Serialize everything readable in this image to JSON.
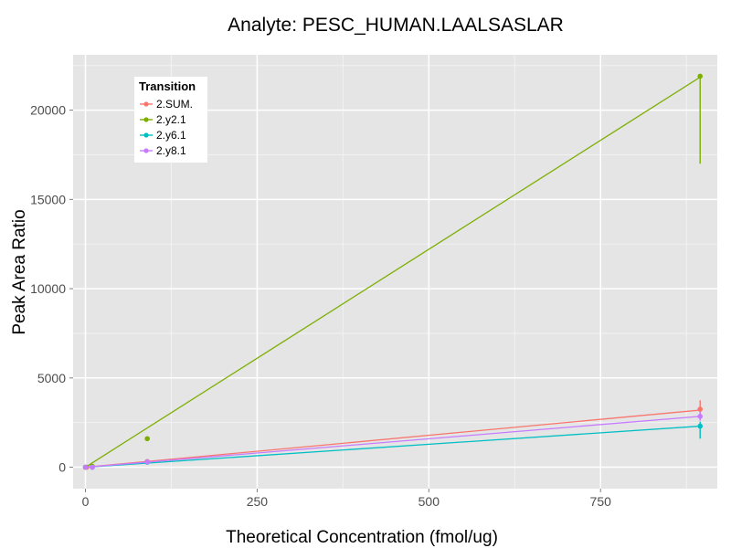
{
  "chart_data": {
    "type": "line",
    "title": "Analyte: PESC_HUMAN.LAALSASLAR",
    "xlabel": "Theoretical Concentration (fmol/ug)",
    "ylabel": "Peak Area Ratio",
    "xlim": [
      -18,
      920
    ],
    "ylim": [
      -1200,
      23100
    ],
    "x_ticks": [
      0,
      250,
      500,
      750
    ],
    "y_ticks": [
      0,
      5000,
      10000,
      15000,
      20000
    ],
    "x_tick_labels": [
      "0",
      "250",
      "500",
      "750"
    ],
    "y_tick_labels": [
      "0",
      "5000",
      "10000",
      "15000",
      "20000"
    ],
    "grid": true,
    "legend": {
      "title": "Transition",
      "position": "top-left"
    },
    "series": [
      {
        "name": "2.SUM.",
        "color": "#F8766D",
        "fit_line": [
          [
            0,
            0
          ],
          [
            895,
            3200
          ]
        ],
        "points": [
          [
            0,
            0
          ],
          [
            2,
            0
          ],
          [
            10,
            0
          ],
          [
            90,
            320
          ],
          [
            895,
            3250
          ]
        ],
        "error_bars": [
          [
            895,
            2900,
            3750
          ]
        ]
      },
      {
        "name": "2.y2.1",
        "color": "#7CAE00",
        "fit_line": [
          [
            0,
            0
          ],
          [
            895,
            21850
          ]
        ],
        "points": [
          [
            0,
            0
          ],
          [
            10,
            50
          ],
          [
            90,
            1600
          ],
          [
            895,
            21900
          ]
        ],
        "error_bars": [
          [
            895,
            17000,
            21950
          ]
        ]
      },
      {
        "name": "2.y6.1",
        "color": "#00BFC4",
        "fit_line": [
          [
            0,
            0
          ],
          [
            895,
            2300
          ]
        ],
        "points": [
          [
            0,
            0
          ],
          [
            10,
            0
          ],
          [
            90,
            280
          ],
          [
            895,
            2300
          ]
        ],
        "error_bars": [
          [
            895,
            1600,
            2550
          ]
        ]
      },
      {
        "name": "2.y8.1",
        "color": "#C77CFF",
        "fit_line": [
          [
            0,
            0
          ],
          [
            895,
            2850
          ]
        ],
        "points": [
          [
            0,
            0
          ],
          [
            10,
            0
          ],
          [
            90,
            300
          ],
          [
            895,
            2850
          ]
        ],
        "error_bars": [
          [
            895,
            2600,
            3100
          ]
        ]
      }
    ]
  }
}
